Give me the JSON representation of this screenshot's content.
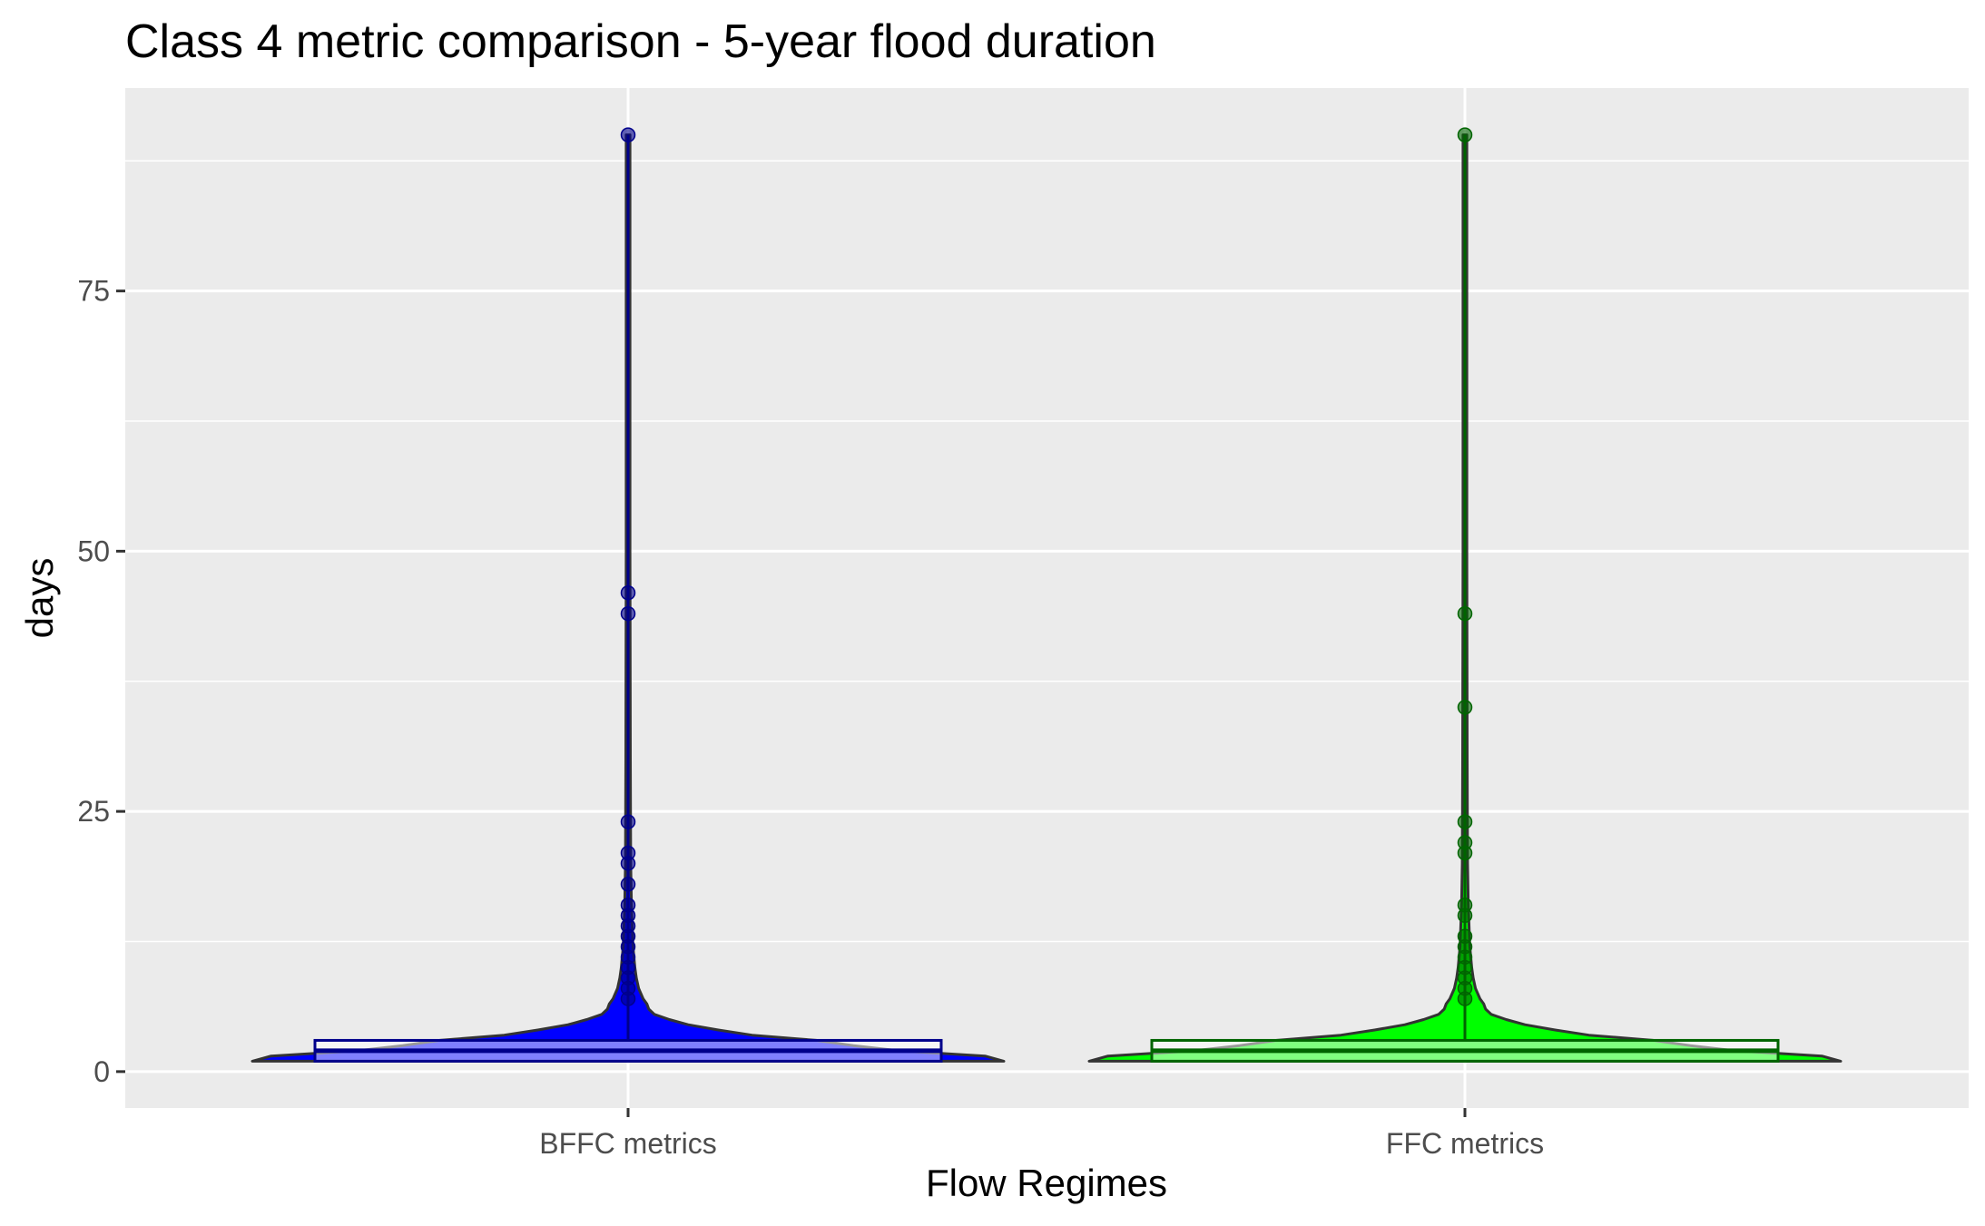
{
  "chart_data": {
    "type": "violin",
    "title": "Class 4 metric comparison - 5-year flood duration",
    "xlabel": "Flow Regimes",
    "ylabel": "days",
    "ylim": [
      -3.5,
      94.5
    ],
    "yticks": [
      0,
      25,
      50,
      75
    ],
    "ytick_labels": [
      "0",
      "25",
      "50",
      "75"
    ],
    "categories": [
      "BFFC metrics",
      "FFC metrics"
    ],
    "grid": true,
    "legend": "none",
    "series": [
      {
        "category": "BFFC metrics",
        "fill": "#0000ff",
        "box_color": "#00008b",
        "point_color": "#00008b",
        "box": {
          "q1": 1,
          "median": 2,
          "q3": 3,
          "whisker_low": 1,
          "whisker_high": 90
        },
        "outliers": [
          90,
          46,
          44,
          24,
          21,
          20,
          18,
          16,
          15,
          14,
          13,
          12,
          11,
          10,
          9,
          8,
          7
        ],
        "density": [
          [
            1,
            1.0
          ],
          [
            1.5,
            0.95
          ],
          [
            2,
            0.72
          ],
          [
            2.5,
            0.6
          ],
          [
            3,
            0.5
          ],
          [
            3.5,
            0.33
          ],
          [
            4,
            0.24
          ],
          [
            4.5,
            0.16
          ],
          [
            5,
            0.11
          ],
          [
            5.5,
            0.07
          ],
          [
            6,
            0.055
          ],
          [
            6.5,
            0.05
          ],
          [
            7,
            0.04
          ],
          [
            8,
            0.028
          ],
          [
            9,
            0.022
          ],
          [
            10,
            0.018
          ],
          [
            12,
            0.013
          ],
          [
            16,
            0.009
          ],
          [
            20,
            0.007
          ],
          [
            30,
            0.006
          ],
          [
            50,
            0.005
          ],
          [
            90,
            0.005
          ]
        ]
      },
      {
        "category": "FFC metrics",
        "fill": "#00ff00",
        "box_color": "#006400",
        "point_color": "#006400",
        "box": {
          "q1": 1,
          "median": 2,
          "q3": 3,
          "whisker_low": 1,
          "whisker_high": 90
        },
        "outliers": [
          90,
          44,
          35,
          24,
          22,
          21,
          16,
          15,
          13,
          12,
          11,
          10,
          9,
          8,
          7
        ],
        "density": [
          [
            1,
            1.0
          ],
          [
            1.5,
            0.95
          ],
          [
            2,
            0.72
          ],
          [
            2.5,
            0.6
          ],
          [
            3,
            0.5
          ],
          [
            3.5,
            0.33
          ],
          [
            4,
            0.24
          ],
          [
            4.5,
            0.16
          ],
          [
            5,
            0.11
          ],
          [
            5.5,
            0.07
          ],
          [
            6,
            0.055
          ],
          [
            6.5,
            0.05
          ],
          [
            7,
            0.04
          ],
          [
            8,
            0.028
          ],
          [
            9,
            0.022
          ],
          [
            10,
            0.018
          ],
          [
            12,
            0.013
          ],
          [
            16,
            0.009
          ],
          [
            20,
            0.007
          ],
          [
            30,
            0.006
          ],
          [
            50,
            0.005
          ],
          [
            90,
            0.005
          ]
        ]
      }
    ]
  }
}
